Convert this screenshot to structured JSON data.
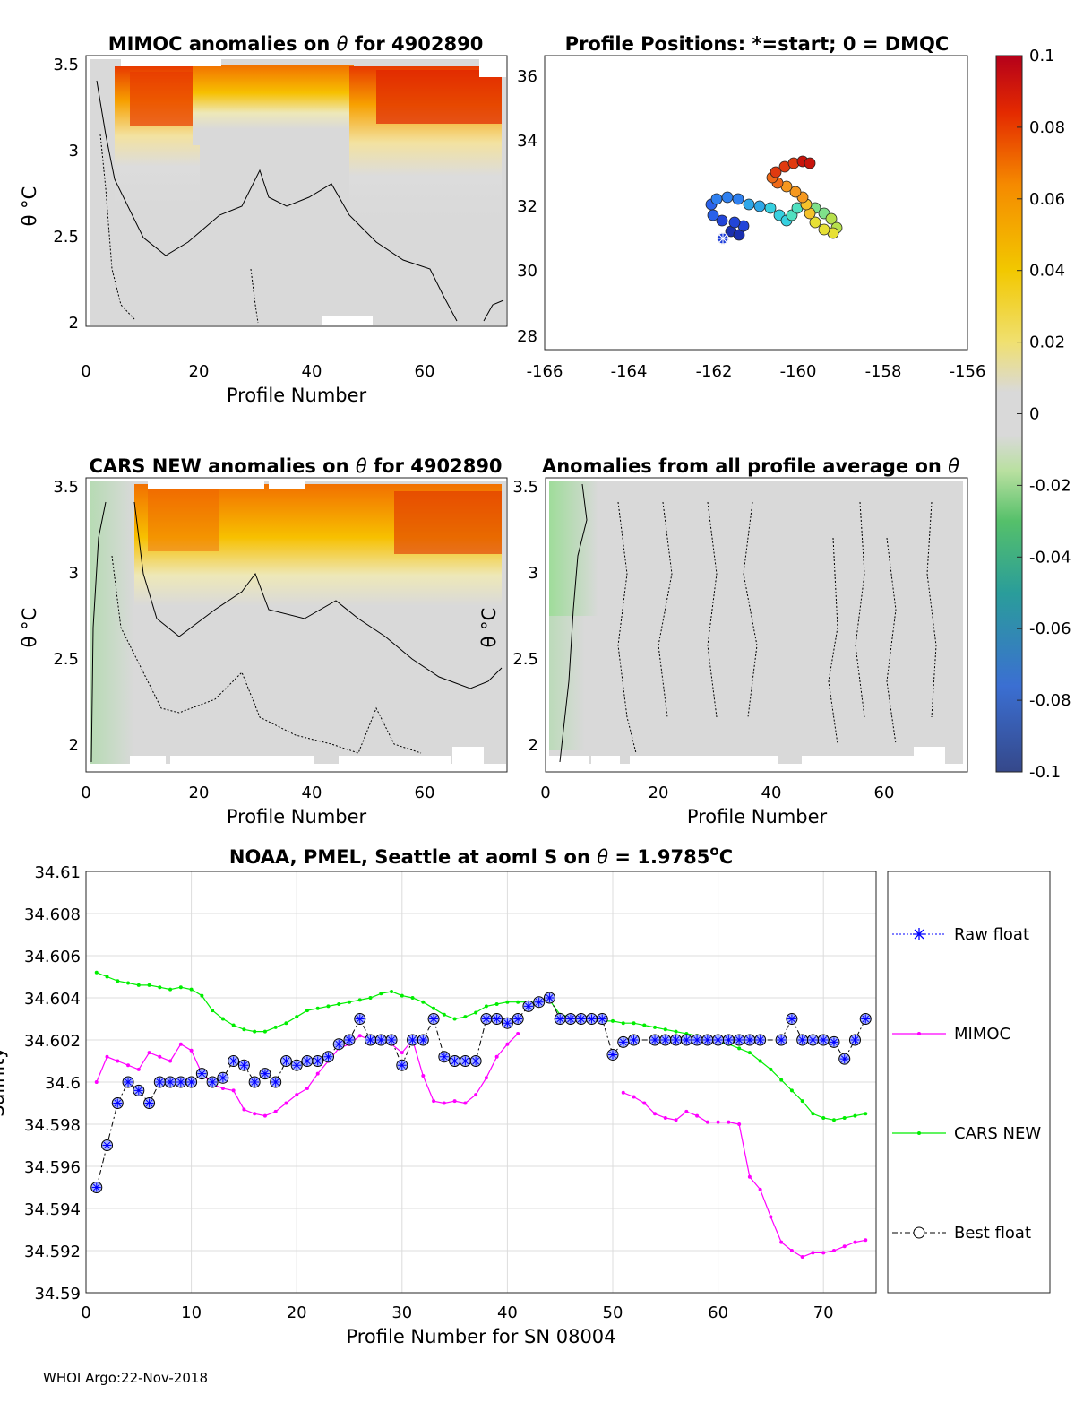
{
  "footer": "WHOI Argo:22-Nov-2018",
  "colorbar": {
    "ticks": [
      "0.1",
      "0.08",
      "0.06",
      "0.04",
      "0.02",
      "0",
      "-0.02",
      "-0.04",
      "-0.06",
      "-0.08",
      "-0.1"
    ],
    "range": [
      -0.1,
      0.1
    ]
  },
  "panels": {
    "mimoc": {
      "title_a": "MIMOC anomalies on ",
      "title_theta": "θ",
      "title_b": "  for 4902890",
      "xlabel": "Profile Number",
      "ylabel": "θ °C",
      "xticks": [
        "0",
        "20",
        "40",
        "60"
      ],
      "yticks": [
        "3.5",
        "3",
        "2.5",
        "2"
      ]
    },
    "positions": {
      "title": "Profile Positions: *=start; 0 = DMQC",
      "xticks": [
        "-166",
        "-164",
        "-162",
        "-160",
        "-158",
        "-156"
      ],
      "yticks": [
        "36",
        "34",
        "32",
        "30",
        "28"
      ]
    },
    "cars": {
      "title_a": "CARS NEW anomalies on ",
      "title_theta": "θ",
      "title_b": " for 4902890",
      "xlabel": "Profile Number",
      "ylabel": "θ °C",
      "xticks": [
        "0",
        "20",
        "40",
        "60"
      ],
      "yticks": [
        "3.5",
        "3",
        "2.5",
        "2"
      ]
    },
    "allprof": {
      "title_a": "Anomalies from all profile average on ",
      "title_theta": "θ",
      "xlabel": "Profile Number",
      "xticks": [
        "0",
        "20",
        "40",
        "60"
      ],
      "yticks": [
        "3.5",
        "3",
        "2.5",
        "2"
      ]
    }
  },
  "chart_data": {
    "type": "line",
    "title": "NOAA, PMEL, Seattle at aoml S on θ = 1.9785°C",
    "title_prefix": "NOAA, PMEL, Seattle at aoml S on ",
    "title_theta": "θ",
    "title_suffix": " = 1.9785",
    "title_sup": "o",
    "title_unit": "C",
    "xlabel": "Profile Number for SN 08004",
    "ylabel": "Salinity",
    "xlim": [
      0,
      75
    ],
    "ylim": [
      34.59,
      34.61
    ],
    "xticks": [
      0,
      10,
      20,
      30,
      40,
      50,
      60,
      70
    ],
    "yticks": [
      "34.61",
      "34.608",
      "34.606",
      "34.604",
      "34.602",
      "34.6",
      "34.598",
      "34.596",
      "34.594",
      "34.592",
      "34.59"
    ],
    "grid": true,
    "legend_position": "outside-right",
    "series": [
      {
        "name": "Raw float",
        "color": "#0000ff",
        "x": [
          1,
          2,
          3,
          4,
          5,
          6,
          7,
          8,
          9,
          10,
          11,
          12,
          13,
          14,
          15,
          16,
          17,
          18,
          19,
          20,
          21,
          22,
          23,
          24,
          25,
          26,
          27,
          28,
          29,
          30,
          31,
          32,
          33,
          34,
          35,
          36,
          37,
          38,
          39,
          40,
          41,
          42,
          43,
          44,
          45,
          46,
          47,
          48,
          49,
          50,
          51,
          52,
          54,
          55,
          56,
          57,
          58,
          59,
          60,
          61,
          62,
          63,
          64,
          66,
          67,
          68,
          69,
          70,
          71,
          72,
          73,
          74
        ],
        "y": [
          34.595,
          34.597,
          34.599,
          34.6,
          34.5996,
          34.599,
          34.6,
          34.6,
          34.6,
          34.6,
          34.6004,
          34.6,
          34.6002,
          34.601,
          34.6008,
          34.6,
          34.6004,
          34.6,
          34.601,
          34.6008,
          34.601,
          34.601,
          34.6012,
          34.6018,
          34.602,
          34.603,
          34.602,
          34.602,
          34.602,
          34.6008,
          34.602,
          34.602,
          34.603,
          34.6012,
          34.601,
          34.601,
          34.601,
          34.603,
          34.603,
          34.6028,
          34.603,
          34.6036,
          34.6038,
          34.604,
          34.603,
          34.603,
          34.603,
          34.603,
          34.603,
          34.6013,
          34.6019,
          34.602,
          34.602,
          34.602,
          34.602,
          34.602,
          34.602,
          34.602,
          34.602,
          34.602,
          34.602,
          34.602,
          34.602,
          34.602,
          34.603,
          34.602,
          34.602,
          34.602,
          34.6019,
          34.6011,
          34.602,
          34.603
        ]
      },
      {
        "name": "MIMOC",
        "color": "#ff00ff",
        "x": [
          1,
          2,
          3,
          4,
          5,
          6,
          7,
          8,
          9,
          10,
          11,
          12,
          13,
          14,
          15,
          16,
          17,
          18,
          19,
          20,
          21,
          22,
          23,
          24,
          25,
          26,
          27,
          28,
          29,
          30,
          31,
          32,
          33,
          34,
          35,
          36,
          37,
          38,
          39,
          40,
          41,
          51,
          52,
          53,
          54,
          55,
          56,
          57,
          58,
          59,
          60,
          61,
          62,
          63,
          64,
          65,
          66,
          67,
          68,
          69,
          70,
          71,
          72,
          73,
          74
        ],
        "y": [
          34.6,
          34.6012,
          34.601,
          34.6008,
          34.6006,
          34.6014,
          34.6012,
          34.601,
          34.6018,
          34.6015,
          34.6004,
          34.5999,
          34.5997,
          34.5996,
          34.5987,
          34.5985,
          34.5984,
          34.5986,
          34.599,
          34.5994,
          34.5997,
          34.6004,
          34.601,
          34.6016,
          34.6018,
          34.6022,
          34.602,
          34.602,
          34.6018,
          34.6014,
          34.602,
          34.6003,
          34.5991,
          34.599,
          34.5991,
          34.599,
          34.5994,
          34.6002,
          34.6012,
          34.6018,
          34.6023,
          34.5995,
          34.5993,
          34.599,
          34.5985,
          34.5983,
          34.5982,
          34.5986,
          34.5984,
          34.5981,
          34.5981,
          34.5981,
          34.598,
          34.5955,
          34.5949,
          34.5936,
          34.5924,
          34.592,
          34.5917,
          34.5919,
          34.5919,
          34.592,
          34.5922,
          34.5924,
          34.5925
        ]
      },
      {
        "name": "CARS NEW",
        "color": "#00ee00",
        "x": [
          1,
          2,
          3,
          4,
          5,
          6,
          7,
          8,
          9,
          10,
          11,
          12,
          13,
          14,
          15,
          16,
          17,
          18,
          19,
          20,
          21,
          22,
          23,
          24,
          25,
          26,
          27,
          28,
          29,
          30,
          31,
          32,
          33,
          34,
          35,
          36,
          37,
          38,
          39,
          40,
          41,
          42,
          43,
          44,
          45,
          46,
          47,
          48,
          49,
          50,
          51,
          52,
          53,
          54,
          55,
          56,
          57,
          58,
          59,
          60,
          61,
          62,
          63,
          64,
          65,
          66,
          67,
          68,
          69,
          70,
          71,
          72,
          73,
          74
        ],
        "y": [
          34.6052,
          34.605,
          34.6048,
          34.6047,
          34.6046,
          34.6046,
          34.6045,
          34.6044,
          34.6045,
          34.6044,
          34.6041,
          34.6034,
          34.603,
          34.6027,
          34.6025,
          34.6024,
          34.6024,
          34.6026,
          34.6028,
          34.6031,
          34.6034,
          34.6035,
          34.6036,
          34.6037,
          34.6038,
          34.6039,
          34.604,
          34.6042,
          34.6043,
          34.6041,
          34.604,
          34.6038,
          34.6035,
          34.6032,
          34.603,
          34.6031,
          34.6033,
          34.6036,
          34.6037,
          34.6038,
          34.6038,
          34.6038,
          34.6039,
          34.6039,
          34.6032,
          34.6031,
          34.603,
          34.603,
          34.6029,
          34.6029,
          34.6028,
          34.6028,
          34.6027,
          34.6026,
          34.6025,
          34.6024,
          34.6023,
          34.6022,
          34.602,
          34.6019,
          34.6018,
          34.6016,
          34.6014,
          34.601,
          34.6006,
          34.6001,
          34.5996,
          34.5991,
          34.5985,
          34.5983,
          34.5982,
          34.5983,
          34.5984,
          34.5985
        ]
      },
      {
        "name": "Best float",
        "color": "#000000",
        "x": [
          1,
          2,
          3,
          4,
          5,
          6,
          7,
          8,
          9,
          10,
          11,
          12,
          13,
          14,
          15,
          16,
          17,
          18,
          19,
          20,
          21,
          22,
          23,
          24,
          25,
          26,
          27,
          28,
          29,
          30,
          31,
          32,
          33,
          34,
          35,
          36,
          37,
          38,
          39,
          40,
          41,
          42,
          43,
          44,
          45,
          46,
          47,
          48,
          49,
          50,
          51,
          52,
          54,
          55,
          56,
          57,
          58,
          59,
          60,
          61,
          62,
          63,
          64,
          66,
          67,
          68,
          69,
          70,
          71,
          72,
          73,
          74
        ],
        "y": [
          34.595,
          34.597,
          34.599,
          34.6,
          34.5996,
          34.599,
          34.6,
          34.6,
          34.6,
          34.6,
          34.6004,
          34.6,
          34.6002,
          34.601,
          34.6008,
          34.6,
          34.6004,
          34.6,
          34.601,
          34.6008,
          34.601,
          34.601,
          34.6012,
          34.6018,
          34.602,
          34.603,
          34.602,
          34.602,
          34.602,
          34.6008,
          34.602,
          34.602,
          34.603,
          34.6012,
          34.601,
          34.601,
          34.601,
          34.603,
          34.603,
          34.6028,
          34.603,
          34.6036,
          34.6038,
          34.604,
          34.603,
          34.603,
          34.603,
          34.603,
          34.603,
          34.6013,
          34.6019,
          34.602,
          34.602,
          34.602,
          34.602,
          34.602,
          34.602,
          34.602,
          34.602,
          34.602,
          34.602,
          34.602,
          34.602,
          34.602,
          34.603,
          34.602,
          34.602,
          34.602,
          34.6019,
          34.6011,
          34.602,
          34.603
        ]
      }
    ]
  }
}
